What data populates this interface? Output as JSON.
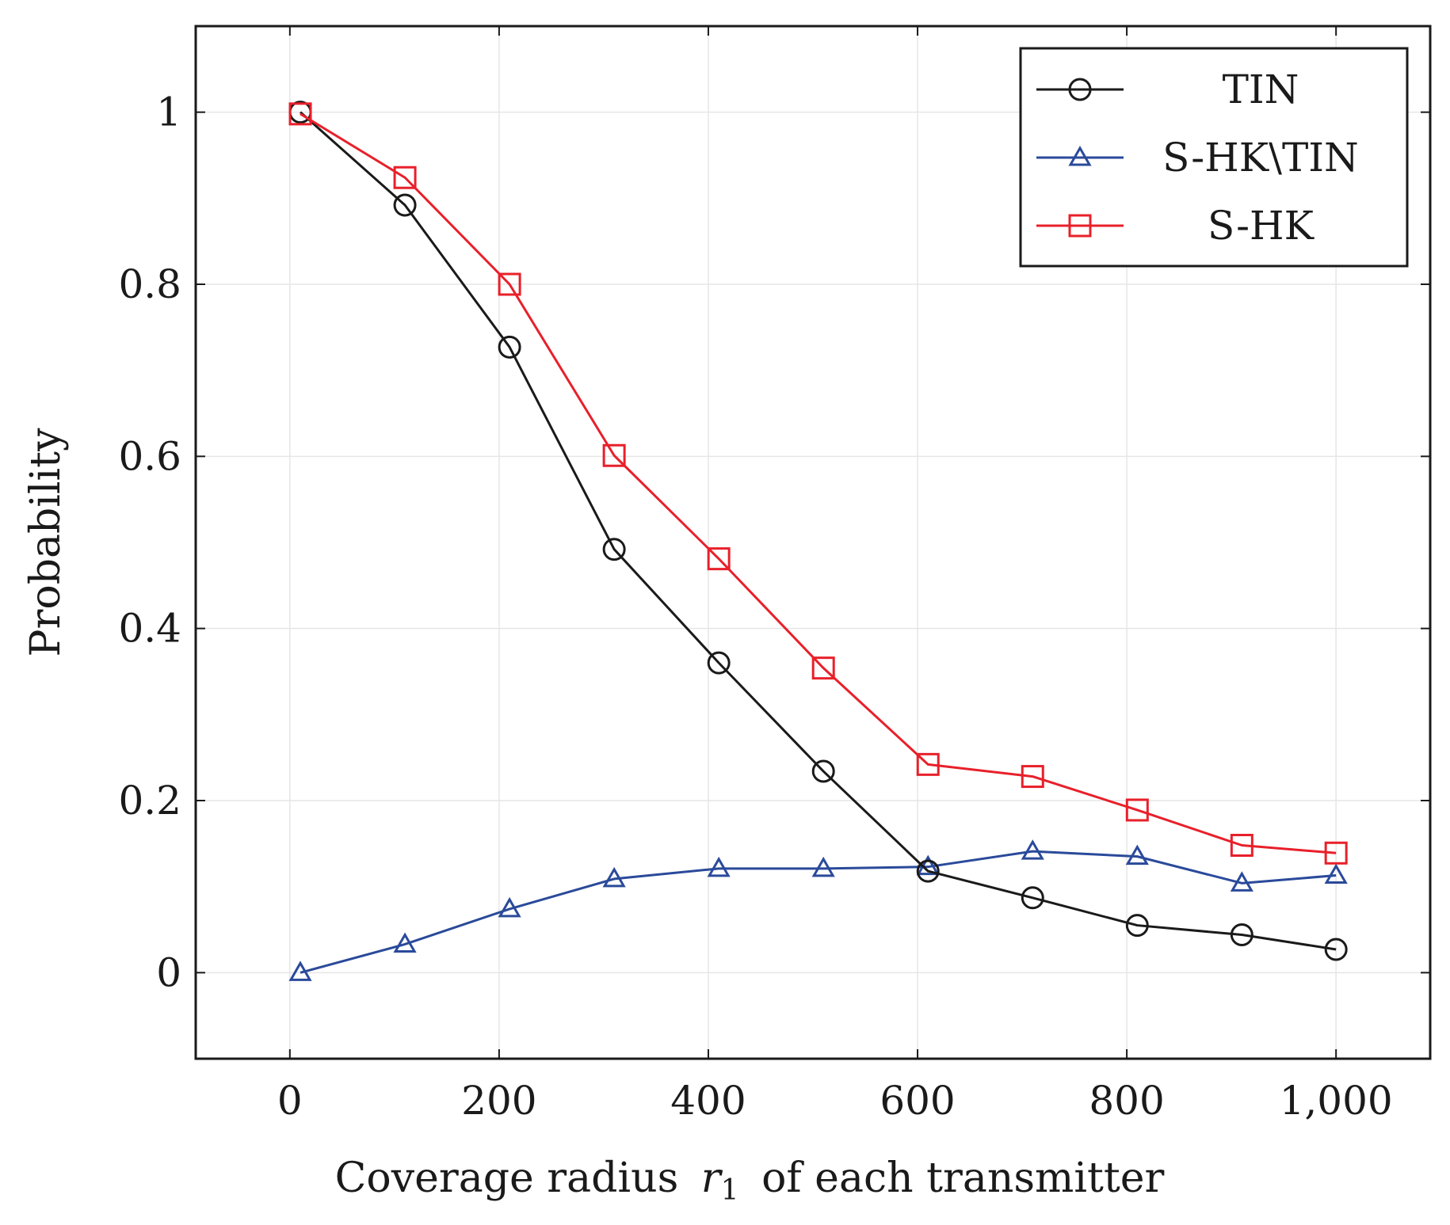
{
  "chart_data": {
    "type": "line",
    "title": "",
    "xlabel": "Coverage radius",
    "xlabel_var": "r",
    "xlabel_sub": "1",
    "xlabel_suffix": "of each transmitter",
    "ylabel": "Probability",
    "xlim": [
      -90,
      1090
    ],
    "ylim": [
      -0.1,
      1.1
    ],
    "x_ticks": [
      0,
      200,
      400,
      600,
      800,
      1000
    ],
    "x_tick_labels": [
      "0",
      "200",
      "400",
      "600",
      "800",
      "1,000"
    ],
    "y_ticks": [
      0,
      0.2,
      0.4,
      0.6,
      0.8,
      1
    ],
    "y_tick_labels": [
      "0",
      "0.2",
      "0.4",
      "0.6",
      "0.8",
      "1"
    ],
    "grid": true,
    "legend_position": "top-right",
    "x": [
      10,
      110,
      210,
      310,
      410,
      510,
      610,
      710,
      810,
      910,
      1000
    ],
    "series": [
      {
        "name": "TIN",
        "color": "#1a1a1a",
        "marker": "circle",
        "values": [
          1.0,
          0.892,
          0.727,
          0.492,
          0.36,
          0.234,
          0.118,
          0.087,
          0.055,
          0.044,
          0.027
        ]
      },
      {
        "name": "S-HK\\TIN",
        "color": "#2a4a9a",
        "marker": "triangle",
        "values": [
          0.0,
          0.033,
          0.074,
          0.109,
          0.121,
          0.121,
          0.123,
          0.141,
          0.135,
          0.104,
          0.113
        ]
      },
      {
        "name": "S-HK",
        "color": "#e8202a",
        "marker": "square",
        "values": [
          0.998,
          0.924,
          0.8,
          0.601,
          0.481,
          0.354,
          0.242,
          0.228,
          0.189,
          0.148,
          0.139
        ]
      }
    ]
  }
}
